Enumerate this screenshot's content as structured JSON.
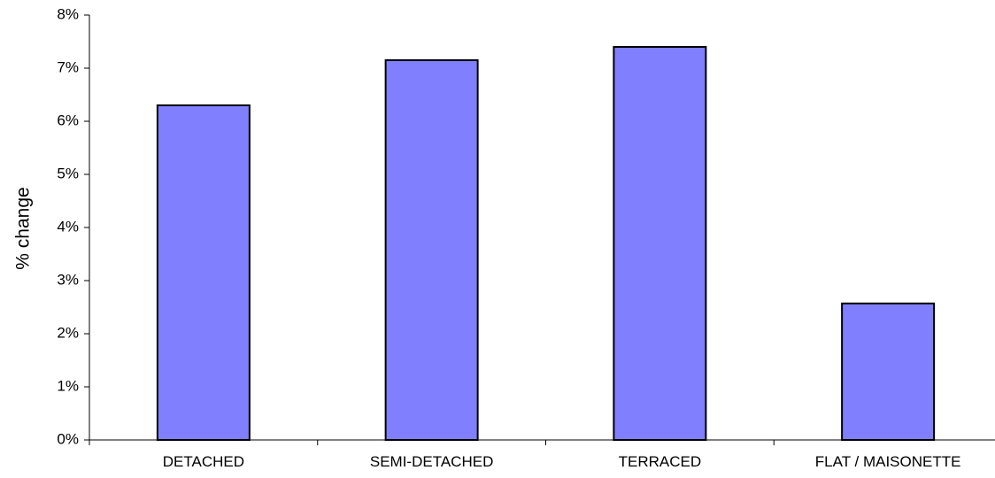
{
  "chart_data": {
    "type": "bar",
    "title": "",
    "xlabel": "",
    "ylabel": "% change",
    "categories": [
      "DETACHED",
      "SEMI-DETACHED",
      "TERRACED",
      "FLAT / MAISONETTE"
    ],
    "values": [
      6.3,
      7.15,
      7.4,
      2.57
    ],
    "value_unit": "%",
    "ylim": [
      0,
      8
    ],
    "yticks": [
      0,
      1,
      2,
      3,
      4,
      5,
      6,
      7,
      8
    ],
    "ytick_labels": [
      "0%",
      "1%",
      "2%",
      "3%",
      "4%",
      "5%",
      "6%",
      "7%",
      "8%"
    ],
    "grid": false,
    "legend": "none",
    "colors": {
      "bar_fill": "#8080ff",
      "bar_stroke": "#000000",
      "axis": "#000000"
    }
  }
}
